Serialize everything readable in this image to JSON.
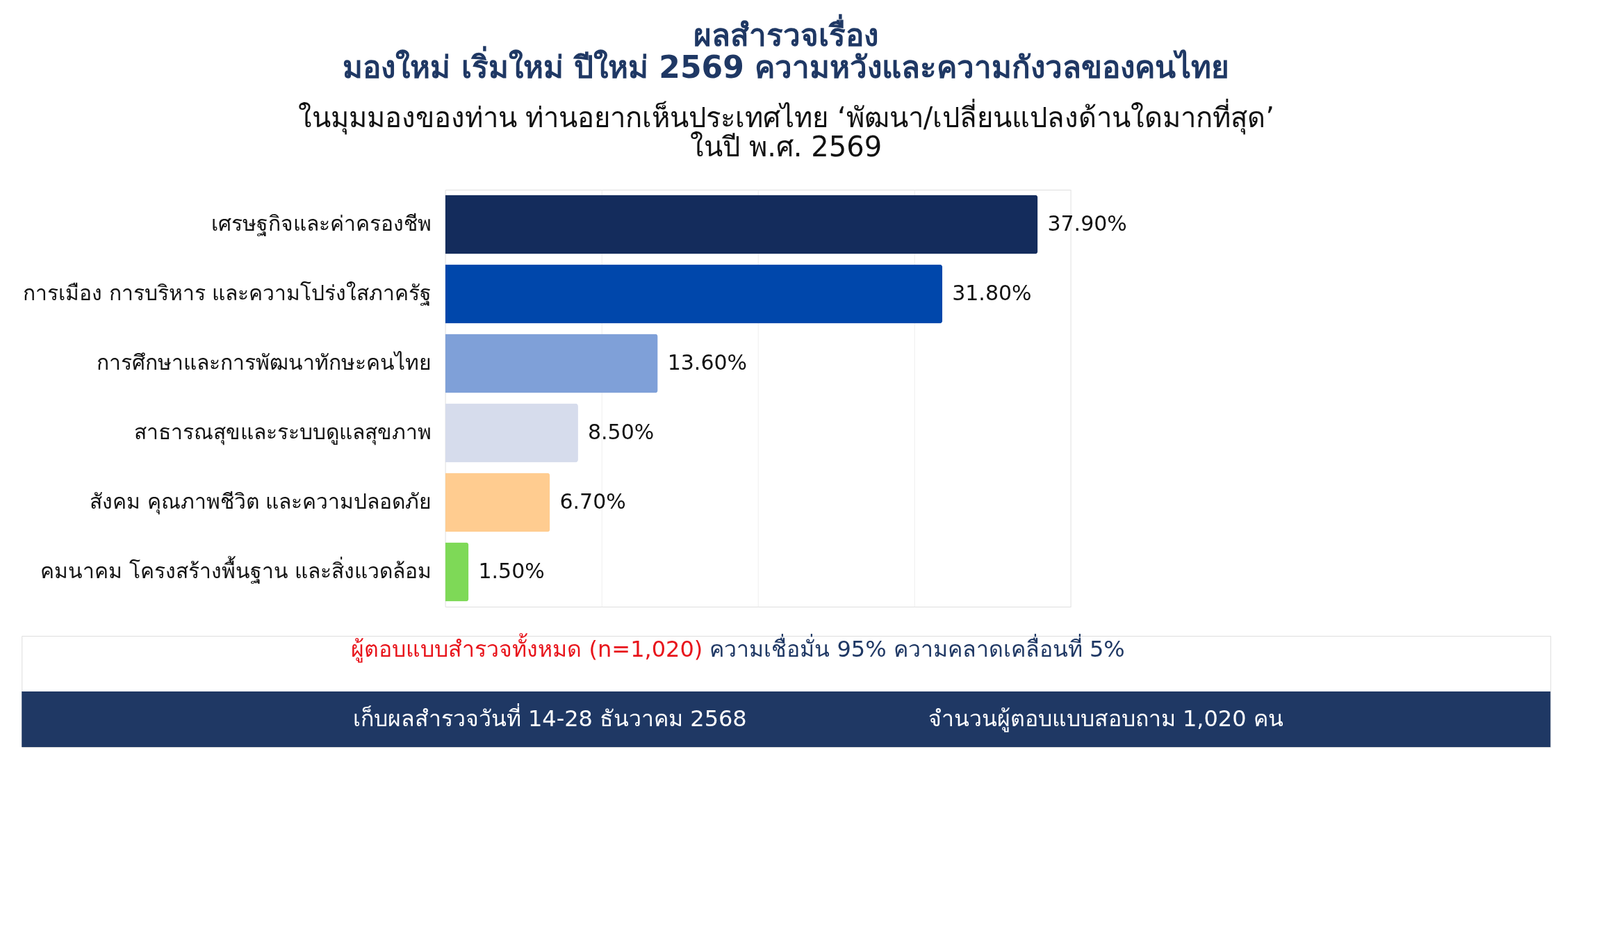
{
  "chart_data": {
    "type": "bar",
    "orientation": "horizontal",
    "title": [
      "ผลสำรวจเรื่อง",
      "มองใหม่ เริ่มใหม่ ปีใหม่ 2569 ความหวังและความกังวลของคนไทย"
    ],
    "subtitle": [
      "ในมุมมองของท่าน ท่านอยากเห็นประเทศไทย ‘พัฒนา/เปลี่ยนแปลงด้านใดมากที่สุด’",
      "ในปี พ.ศ. 2569"
    ],
    "categories": [
      "เศรษฐกิจและค่าครองชีพ",
      "การเมือง การบริหาร และความโปร่งใสภาครัฐ",
      "การศึกษาและการพัฒนาทักษะคนไทย",
      "สาธารณสุขและระบบดูแลสุขภาพ",
      "สังคม คุณภาพชีวิต และความปลอดภัย",
      "คมนาคม โครงสร้างพื้นฐาน และสิ่งแวดล้อม"
    ],
    "values": [
      37.9,
      31.8,
      13.6,
      8.5,
      6.7,
      1.5
    ],
    "colors": [
      "#142c5c",
      "#0047ab",
      "#7fa0d8",
      "#d6dcec",
      "#ffcc90",
      "#7ed957"
    ],
    "value_labels": [
      "37.90%",
      "31.80%",
      "13.60%",
      "8.50%",
      "6.70%",
      "1.50%"
    ],
    "xlim": [
      0,
      40
    ],
    "xticks": [
      {
        "value": 0,
        "label": null
      },
      {
        "value": 10,
        "label": null
      },
      {
        "value": 20,
        "label": null
      },
      {
        "value": 30,
        "label": null
      },
      {
        "value": 40,
        "label": null
      }
    ],
    "grid": "x",
    "tick_labels": "y",
    "annotations": [
      "ผู้ตอบแบบสำรวจทั้งหมด (n=1,020)",
      "ความเชื่อมั่น 95% ความคลาดเคลื่อนที่ 5%",
      "เก็บผลสำรวจวันที่ 14-28 ธันวาคม 2568",
      "จำนวนผู้ตอบแบบสอบถาม 1,020 คน"
    ]
  }
}
